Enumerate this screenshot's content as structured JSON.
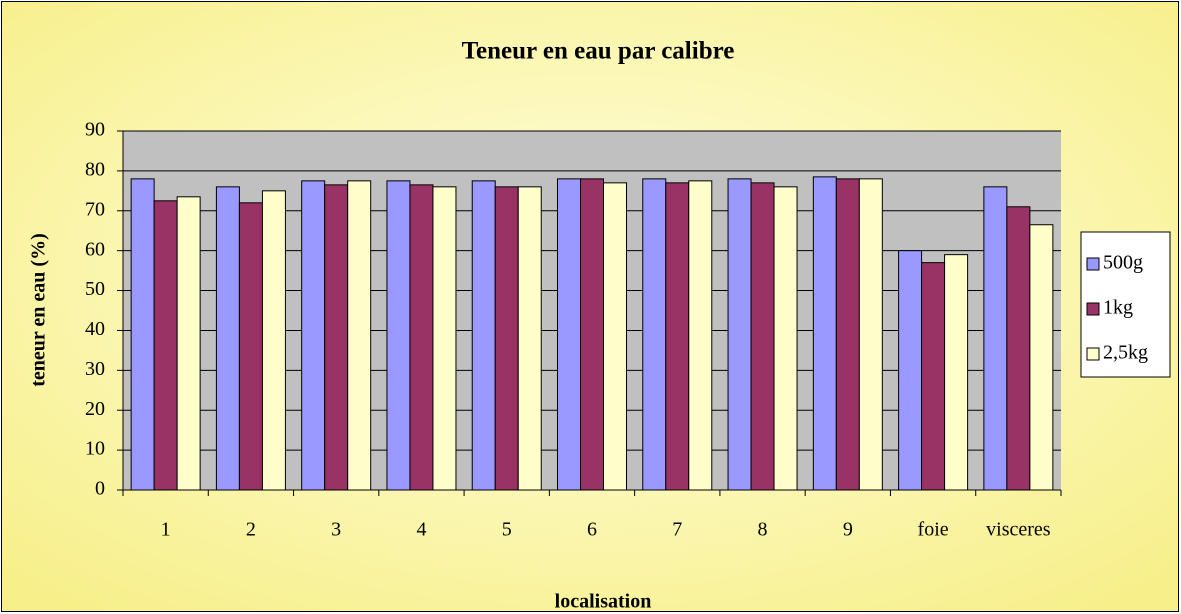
{
  "chart_data": {
    "type": "bar",
    "title": "Teneur en eau par calibre",
    "xlabel": "localisation",
    "ylabel": "teneur en eau (%)",
    "categories": [
      "1",
      "2",
      "3",
      "4",
      "5",
      "6",
      "7",
      "8",
      "9",
      "foie",
      "visceres"
    ],
    "series": [
      {
        "name": "500g",
        "color": "#9999ff",
        "values": [
          78,
          76,
          77.5,
          77.5,
          77.5,
          78,
          78,
          78,
          78.5,
          60,
          76
        ]
      },
      {
        "name": "1kg",
        "color": "#993366",
        "values": [
          72.5,
          72,
          76.5,
          76.5,
          76,
          78,
          77,
          77,
          78,
          57,
          71
        ]
      },
      {
        "name": "2,5kg",
        "color": "#ffffcc",
        "values": [
          73.5,
          75,
          77.5,
          76,
          76,
          77,
          77.5,
          76,
          78,
          59,
          66.5
        ]
      }
    ],
    "ylim": [
      0,
      90
    ],
    "yticks": [
      0,
      10,
      20,
      30,
      40,
      50,
      60,
      70,
      80,
      90
    ],
    "grid": true,
    "legend": "right"
  }
}
